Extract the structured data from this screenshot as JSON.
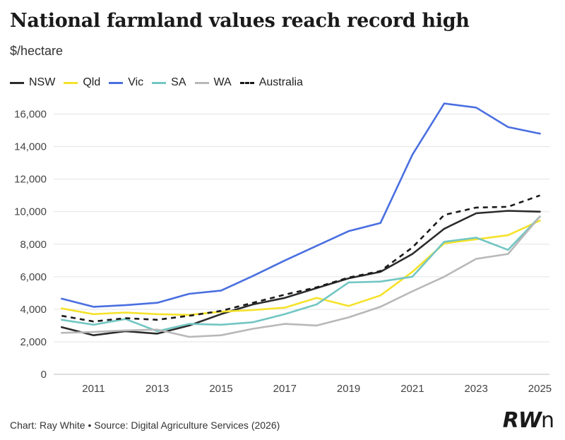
{
  "chart_data": {
    "type": "line",
    "title": "National farmland values reach record high",
    "subtitle": "$/hectare",
    "xlabel": "",
    "ylabel": "$/hectare",
    "x": [
      2010,
      2011,
      2012,
      2013,
      2014,
      2015,
      2016,
      2017,
      2018,
      2019,
      2020,
      2021,
      2022,
      2023,
      2024,
      2025
    ],
    "xticks": [
      2011,
      2013,
      2015,
      2017,
      2019,
      2021,
      2023,
      2025
    ],
    "xlim": [
      2009.75,
      2025.3
    ],
    "ylim": [
      0,
      16500
    ],
    "yticks": [
      0,
      2000,
      4000,
      6000,
      8000,
      10000,
      12000,
      14000,
      16000
    ],
    "ytick_labels": [
      "0",
      "2,000",
      "4,000",
      "6,000",
      "8,000",
      "10,000",
      "12,000",
      "14,000",
      "16,000"
    ],
    "grid": true,
    "legend_position": "top-left",
    "series": [
      {
        "name": "NSW",
        "color": "#2b2b2b",
        "dash": false,
        "values": [
          2900,
          2400,
          2650,
          2500,
          3000,
          3700,
          4300,
          4700,
          5300,
          5900,
          6300,
          7400,
          8950,
          9900,
          10050,
          10000
        ]
      },
      {
        "name": "Qld",
        "color": "#f5e22a",
        "dash": false,
        "values": [
          4050,
          3700,
          3800,
          3700,
          3650,
          3850,
          3950,
          4100,
          4700,
          4200,
          4850,
          6300,
          8050,
          8300,
          8550,
          9450
        ]
      },
      {
        "name": "Vic",
        "color": "#4a6fe0",
        "dash": false,
        "values": [
          4650,
          4150,
          4250,
          4400,
          4950,
          5150,
          6050,
          7000,
          7900,
          8800,
          9300,
          13500,
          16650,
          16400,
          15200,
          14800
        ]
      },
      {
        "name": "SA",
        "color": "#72c6c3",
        "dash": false,
        "values": [
          3350,
          3050,
          3400,
          2650,
          3100,
          3050,
          3200,
          3700,
          4300,
          5650,
          5700,
          6000,
          8150,
          8400,
          7650,
          9700
        ]
      },
      {
        "name": "WA",
        "color": "#b8b8b8",
        "dash": false,
        "values": [
          2550,
          2600,
          2700,
          2750,
          2300,
          2400,
          2800,
          3100,
          3000,
          3500,
          4150,
          5100,
          6000,
          7100,
          7400,
          9700
        ]
      },
      {
        "name": "Australia",
        "color": "#1a1a1a",
        "dash": true,
        "values": [
          3600,
          3250,
          3450,
          3350,
          3600,
          3900,
          4400,
          4900,
          5350,
          5950,
          6350,
          7800,
          9800,
          10250,
          10300,
          11000
        ]
      }
    ]
  },
  "footer": {
    "credit": "Chart: Ray White",
    "separator": "•",
    "source": "Source: Digital Agriculture Services (2026)"
  },
  "logo": {
    "main": "RW",
    "suffix": "n"
  }
}
